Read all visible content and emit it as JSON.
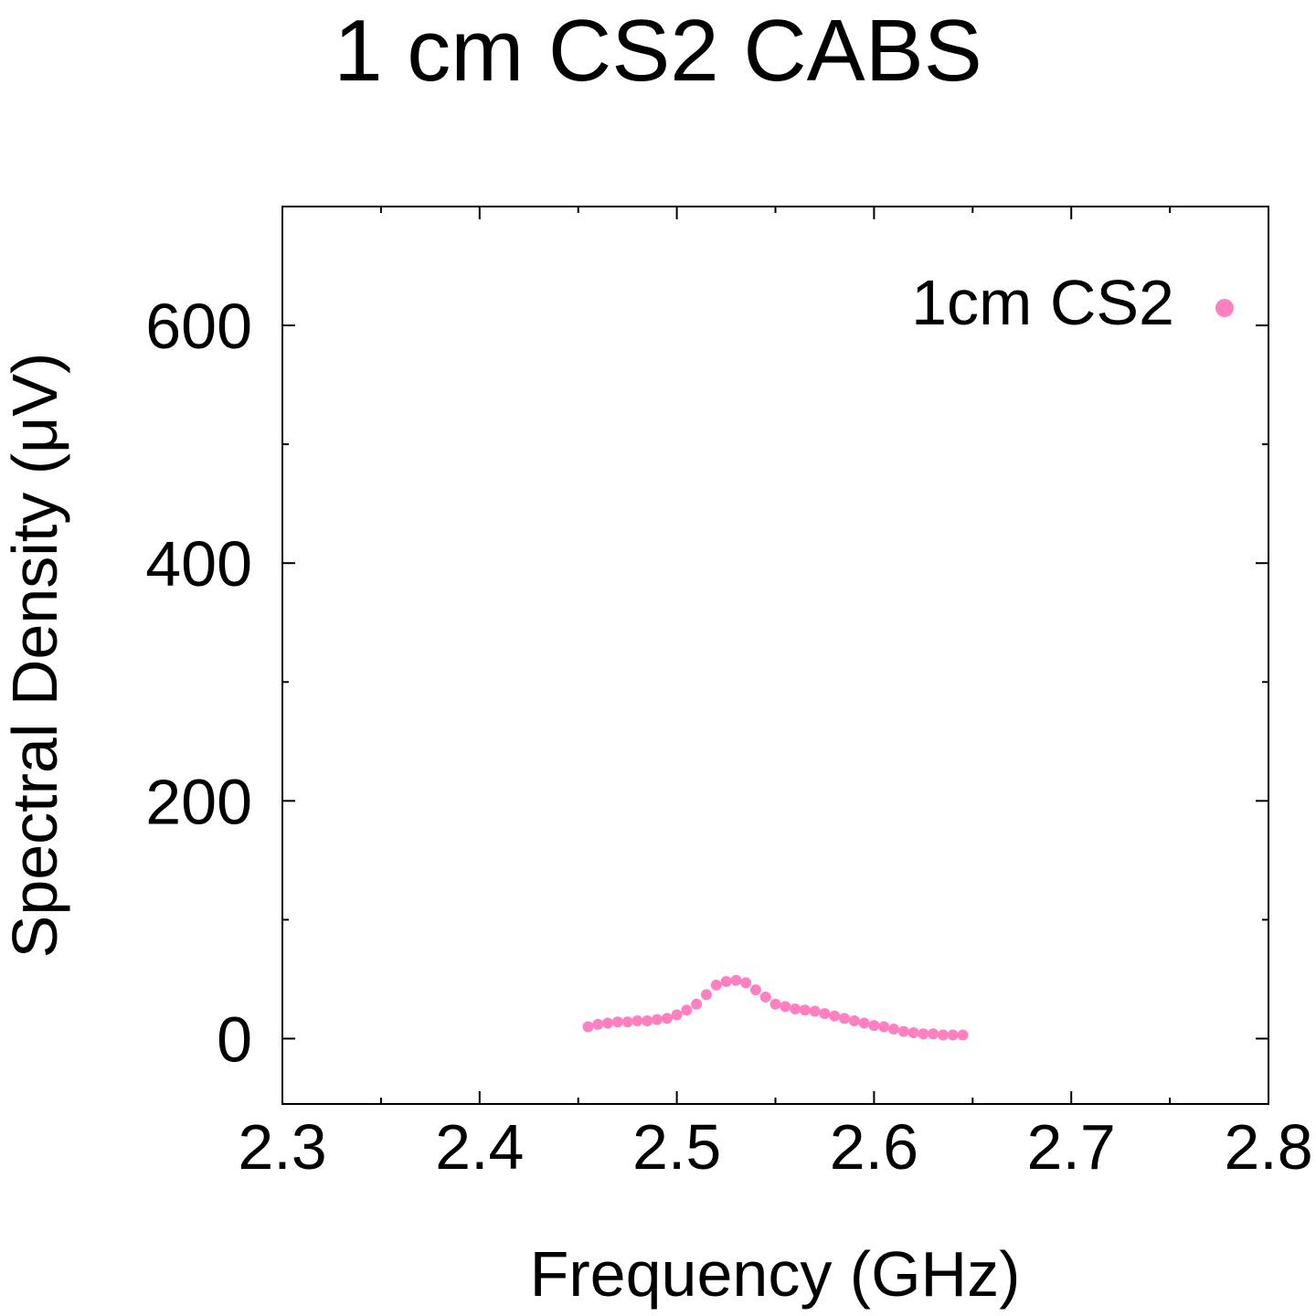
{
  "chart_data": {
    "type": "scatter",
    "title": "1 cm CS2 CABS",
    "xlabel": "Frequency (GHz)",
    "ylabel": "Spectral Density (μV)",
    "xlim": [
      2.3,
      2.8
    ],
    "ylim": [
      -55,
      700
    ],
    "x_ticks": [
      "2.3",
      "2.4",
      "2.5",
      "2.6",
      "2.7",
      "2.8"
    ],
    "x_tick_values": [
      2.3,
      2.4,
      2.5,
      2.6,
      2.7,
      2.8
    ],
    "x_minor_ticks": [
      2.35,
      2.45,
      2.55,
      2.65,
      2.75
    ],
    "y_ticks": [
      "0",
      "200",
      "400",
      "600"
    ],
    "y_tick_values": [
      0,
      200,
      400,
      600
    ],
    "y_minor_ticks": [
      100,
      300,
      500
    ],
    "grid": false,
    "legend_position": "top-right",
    "series": [
      {
        "name": "1cm CS2",
        "color": "#ff80c0",
        "x": [
          2.455,
          2.46,
          2.465,
          2.47,
          2.475,
          2.48,
          2.485,
          2.49,
          2.495,
          2.5,
          2.505,
          2.51,
          2.515,
          2.52,
          2.525,
          2.53,
          2.535,
          2.54,
          2.545,
          2.55,
          2.555,
          2.56,
          2.565,
          2.57,
          2.575,
          2.58,
          2.585,
          2.59,
          2.595,
          2.6,
          2.605,
          2.61,
          2.615,
          2.62,
          2.625,
          2.63,
          2.635,
          2.64,
          2.645
        ],
        "y": [
          10,
          12,
          13,
          14,
          14,
          15,
          15,
          16,
          17,
          20,
          24,
          29,
          37,
          45,
          48,
          49,
          47,
          41,
          35,
          29,
          27,
          25,
          24,
          23,
          21,
          19,
          17,
          15,
          13,
          11,
          10,
          8,
          6,
          5,
          4,
          4,
          3,
          3,
          3
        ]
      }
    ]
  }
}
